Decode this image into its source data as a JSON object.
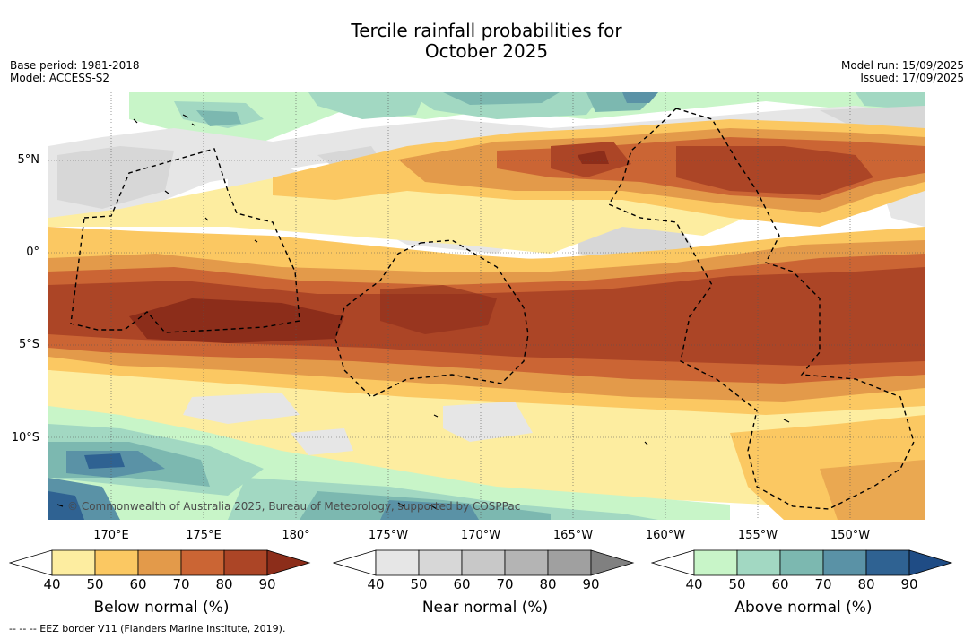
{
  "title_line1": "Tercile rainfall probabilities for",
  "title_line2": "October 2025",
  "base_period": "Base period: 1981-2018",
  "model": "Model: ACCESS-S2",
  "model_run": "Model run: 15/09/2025",
  "issued": "Issued: 17/09/2025",
  "copyright": "© Commonwealth of Australia 2025, Bureau of Meteorology, supported by COSPPac",
  "lat_ticks": [
    "5°N",
    "0°",
    "5°S",
    "10°S"
  ],
  "lon_ticks": [
    "170°E",
    "175°E",
    "180°",
    "175°W",
    "170°W",
    "165°W",
    "160°W",
    "155°W",
    "150°W"
  ],
  "colorbars": [
    {
      "title": "Below normal (%)",
      "ticks": [
        "40",
        "50",
        "60",
        "70",
        "80",
        "90"
      ],
      "colors": [
        "#ffffff",
        "#fdeda0",
        "#fbc862",
        "#e39a4a",
        "#cb6534",
        "#ac4526",
        "#8c2d1a"
      ]
    },
    {
      "title": "Near normal (%)",
      "ticks": [
        "40",
        "50",
        "60",
        "70",
        "80",
        "90"
      ],
      "colors": [
        "#ffffff",
        "#e6e6e6",
        "#d7d7d7",
        "#c8c8c8",
        "#b4b4b4",
        "#a0a0a0",
        "#808080"
      ]
    },
    {
      "title": "Above normal (%)",
      "ticks": [
        "40",
        "50",
        "60",
        "70",
        "80",
        "90"
      ],
      "colors": [
        "#ffffff",
        "#c8f5c8",
        "#a2d8c2",
        "#7cb8b0",
        "#5a92a6",
        "#2f6292",
        "#1f4c85"
      ]
    }
  ],
  "footer": "-- -- -- EEZ border V11 (Flanders Marine Institute, 2019)."
}
